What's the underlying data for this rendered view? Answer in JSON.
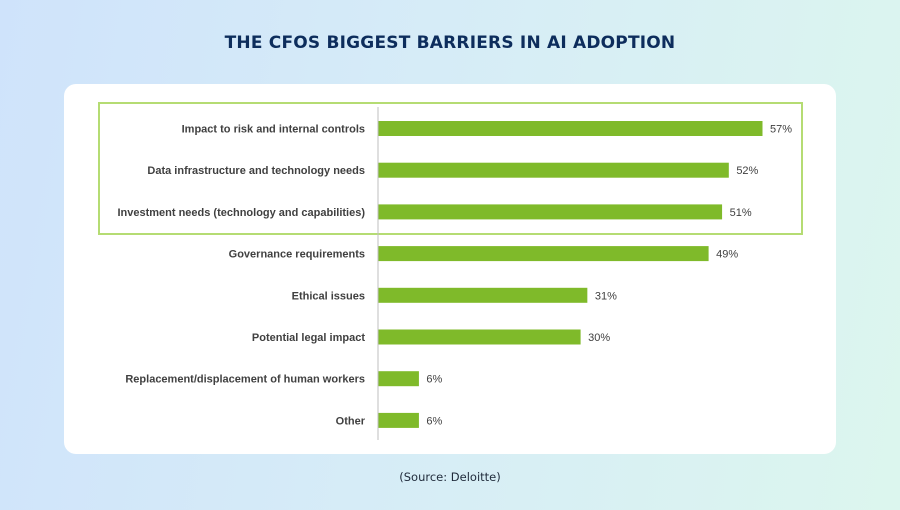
{
  "header": {
    "title": "THE CFOS BIGGEST BARRIERS IN AI ADOPTION"
  },
  "footer": {
    "source": "(Source: Deloitte)"
  },
  "colors": {
    "bar": "#7fba2a",
    "highlight_border": "#b5dc73",
    "axis": "#bfbfbf"
  },
  "chart_data": {
    "type": "bar",
    "orientation": "horizontal",
    "categories": [
      "Impact to risk and internal controls",
      "Data infrastructure and technology needs",
      "Investment needs (technology and capabilities)",
      "Governance requirements",
      "Ethical issues",
      "Potential legal impact",
      "Replacement/displacement of human workers",
      "Other"
    ],
    "values": [
      57,
      52,
      51,
      49,
      31,
      30,
      6,
      6
    ],
    "value_labels": [
      "57%",
      "52%",
      "51%",
      "49%",
      "31%",
      "30%",
      "6%",
      "6%"
    ],
    "xlim": [
      0,
      60
    ],
    "highlighted_categories": 3,
    "grid": false
  }
}
